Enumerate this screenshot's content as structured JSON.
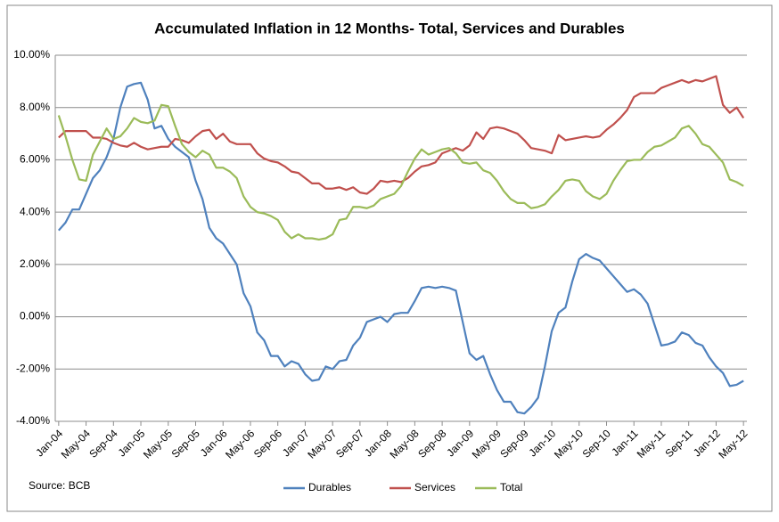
{
  "chart_data": {
    "type": "line",
    "title": "Accumulated Inflation in 12 Months- Total, Services and Durables",
    "annotation": "Source: BCB",
    "categories": [
      "Jan-04",
      null,
      null,
      null,
      "May-04",
      null,
      null,
      null,
      "Sep-04",
      null,
      null,
      null,
      "Jan-05",
      null,
      null,
      null,
      "May-05",
      null,
      null,
      null,
      "Sep-05",
      null,
      null,
      null,
      "Jan-06",
      null,
      null,
      null,
      "May-06",
      null,
      null,
      null,
      "Sep-06",
      null,
      null,
      null,
      "Jan-07",
      null,
      null,
      null,
      "May-07",
      null,
      null,
      null,
      "Sep-07",
      null,
      null,
      null,
      "Jan-08",
      null,
      null,
      null,
      "May-08",
      null,
      null,
      null,
      "Sep-08",
      null,
      null,
      null,
      "Jan-09",
      null,
      null,
      null,
      "May-09",
      null,
      null,
      null,
      "Sep-09",
      null,
      null,
      null,
      "Jan-10",
      null,
      null,
      null,
      "May-10",
      null,
      null,
      null,
      "Sep-10",
      null,
      null,
      null,
      "Jan-11",
      null,
      null,
      null,
      "May-11",
      null,
      null,
      null,
      "Sep-11",
      null,
      null,
      null,
      "Jan-12",
      null,
      null,
      null,
      "May-12"
    ],
    "series": [
      {
        "name": "Durables",
        "color": "#4f81bd",
        "values": [
          3.3,
          3.6,
          4.1,
          4.1,
          4.7,
          5.3,
          5.6,
          6.1,
          6.8,
          8.0,
          8.8,
          8.9,
          8.95,
          8.3,
          7.2,
          7.3,
          6.8,
          6.5,
          6.3,
          6.1,
          5.2,
          4.5,
          3.4,
          3.0,
          2.8,
          2.4,
          2.0,
          0.9,
          0.4,
          -0.6,
          -0.9,
          -1.5,
          -1.5,
          -1.9,
          -1.7,
          -1.8,
          -2.2,
          -2.45,
          -2.4,
          -1.9,
          -2.0,
          -1.7,
          -1.65,
          -1.1,
          -0.8,
          -0.2,
          -0.1,
          0.0,
          -0.2,
          0.1,
          0.15,
          0.15,
          0.6,
          1.1,
          1.15,
          1.1,
          1.15,
          1.1,
          1.0,
          -0.2,
          -1.4,
          -1.65,
          -1.5,
          -2.2,
          -2.8,
          -3.25,
          -3.25,
          -3.65,
          -3.7,
          -3.45,
          -3.1,
          -1.9,
          -0.55,
          0.15,
          0.35,
          1.35,
          2.2,
          2.4,
          2.25,
          2.15,
          1.85,
          1.55,
          1.25,
          0.95,
          1.05,
          0.85,
          0.5,
          -0.3,
          -1.1,
          -1.05,
          -0.95,
          -0.6,
          -0.7,
          -1.0,
          -1.1,
          -1.55,
          -1.9,
          -2.15,
          -2.65,
          -2.6,
          -2.45
        ]
      },
      {
        "name": "Services",
        "color": "#c0504d",
        "values": [
          6.85,
          7.1,
          7.1,
          7.1,
          7.1,
          6.85,
          6.85,
          6.8,
          6.65,
          6.55,
          6.5,
          6.65,
          6.5,
          6.4,
          6.45,
          6.5,
          6.5,
          6.8,
          6.75,
          6.65,
          6.9,
          7.1,
          7.15,
          6.8,
          7.0,
          6.7,
          6.6,
          6.6,
          6.6,
          6.25,
          6.05,
          5.95,
          5.9,
          5.75,
          5.55,
          5.5,
          5.3,
          5.1,
          5.1,
          4.9,
          4.9,
          4.95,
          4.85,
          4.95,
          4.75,
          4.7,
          4.9,
          5.2,
          5.15,
          5.2,
          5.15,
          5.3,
          5.55,
          5.75,
          5.8,
          5.9,
          6.25,
          6.35,
          6.45,
          6.35,
          6.55,
          7.05,
          6.8,
          7.2,
          7.25,
          7.2,
          7.1,
          7.0,
          6.75,
          6.45,
          6.4,
          6.35,
          6.25,
          6.95,
          6.75,
          6.8,
          6.85,
          6.9,
          6.85,
          6.9,
          7.15,
          7.35,
          7.6,
          7.9,
          8.4,
          8.55,
          8.55,
          8.55,
          8.75,
          8.85,
          8.95,
          9.05,
          8.95,
          9.05,
          9.0,
          9.1,
          9.2,
          8.1,
          7.8,
          8.0,
          7.6
        ]
      },
      {
        "name": "Total",
        "color": "#9bbb59",
        "values": [
          7.7,
          6.9,
          6.0,
          5.25,
          5.2,
          6.2,
          6.7,
          7.2,
          6.8,
          6.9,
          7.2,
          7.6,
          7.45,
          7.4,
          7.5,
          8.1,
          8.05,
          7.3,
          6.6,
          6.3,
          6.1,
          6.35,
          6.2,
          5.7,
          5.7,
          5.55,
          5.3,
          4.6,
          4.2,
          4.0,
          3.95,
          3.85,
          3.7,
          3.25,
          3.0,
          3.15,
          3.0,
          3.0,
          2.95,
          3.0,
          3.15,
          3.7,
          3.75,
          4.2,
          4.2,
          4.15,
          4.25,
          4.5,
          4.6,
          4.7,
          5.0,
          5.55,
          6.05,
          6.4,
          6.2,
          6.3,
          6.4,
          6.45,
          6.25,
          5.9,
          5.85,
          5.9,
          5.6,
          5.5,
          5.2,
          4.8,
          4.5,
          4.35,
          4.35,
          4.15,
          4.2,
          4.3,
          4.6,
          4.85,
          5.2,
          5.25,
          5.2,
          4.8,
          4.6,
          4.5,
          4.7,
          5.2,
          5.6,
          5.95,
          6.0,
          6.0,
          6.3,
          6.5,
          6.55,
          6.7,
          6.85,
          7.2,
          7.3,
          7.0,
          6.6,
          6.5,
          6.2,
          5.9,
          5.25,
          5.15,
          5.0
        ]
      }
    ],
    "ylim": [
      -4,
      10
    ],
    "yticks": [
      {
        "value": -4,
        "label": "-4.00%"
      },
      {
        "value": -2,
        "label": "-2.00%"
      },
      {
        "value": 0,
        "label": "0.00%"
      },
      {
        "value": 2,
        "label": "2.00%"
      },
      {
        "value": 4,
        "label": "4.00%"
      },
      {
        "value": 6,
        "label": "6.00%"
      },
      {
        "value": 8,
        "label": "8.00%"
      },
      {
        "value": 10,
        "label": "10.00%"
      }
    ],
    "grid": true,
    "legend": "bottom"
  }
}
